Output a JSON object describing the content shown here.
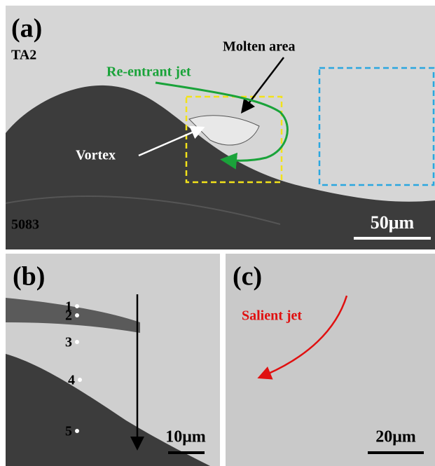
{
  "panel_a": {
    "label": "(a)",
    "top_material": "TA2",
    "bottom_material": "5083",
    "annotations": {
      "molten_area": "Molten area",
      "re_entrant_jet": "Re-entrant jet",
      "vortex": "Vortex"
    },
    "scale_bar": "50μm"
  },
  "panel_b": {
    "label": "(b)",
    "points": [
      "1",
      "2",
      "3",
      "4",
      "5"
    ],
    "scale_bar": "10μm"
  },
  "panel_c": {
    "label": "(c)",
    "annotation": "Salient jet",
    "scale_bar": "20μm"
  }
}
